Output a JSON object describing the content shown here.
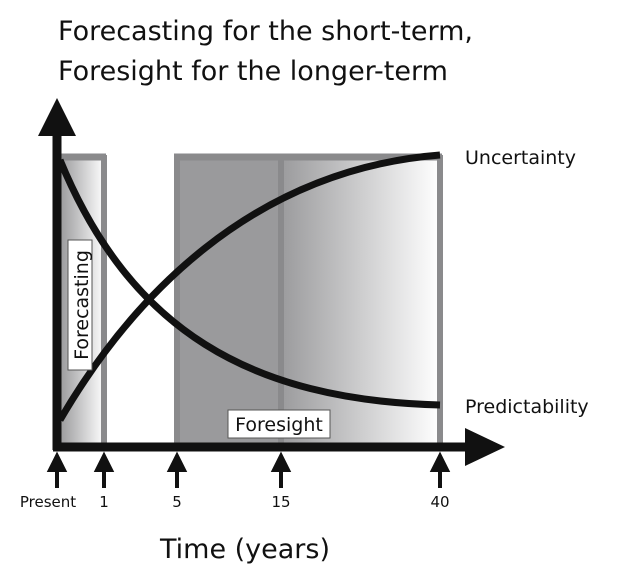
{
  "title": [
    "Forecasting for the short-term,",
    "Foresight for the longer-term"
  ],
  "regions": {
    "short": "Forecasting",
    "long": "Foresight"
  },
  "curves": {
    "rising": "Uncertainty",
    "falling": "Predictability"
  },
  "ticks": [
    "Present",
    "1",
    "5",
    "15",
    "40"
  ],
  "x_axis_label": "Time (years)"
}
